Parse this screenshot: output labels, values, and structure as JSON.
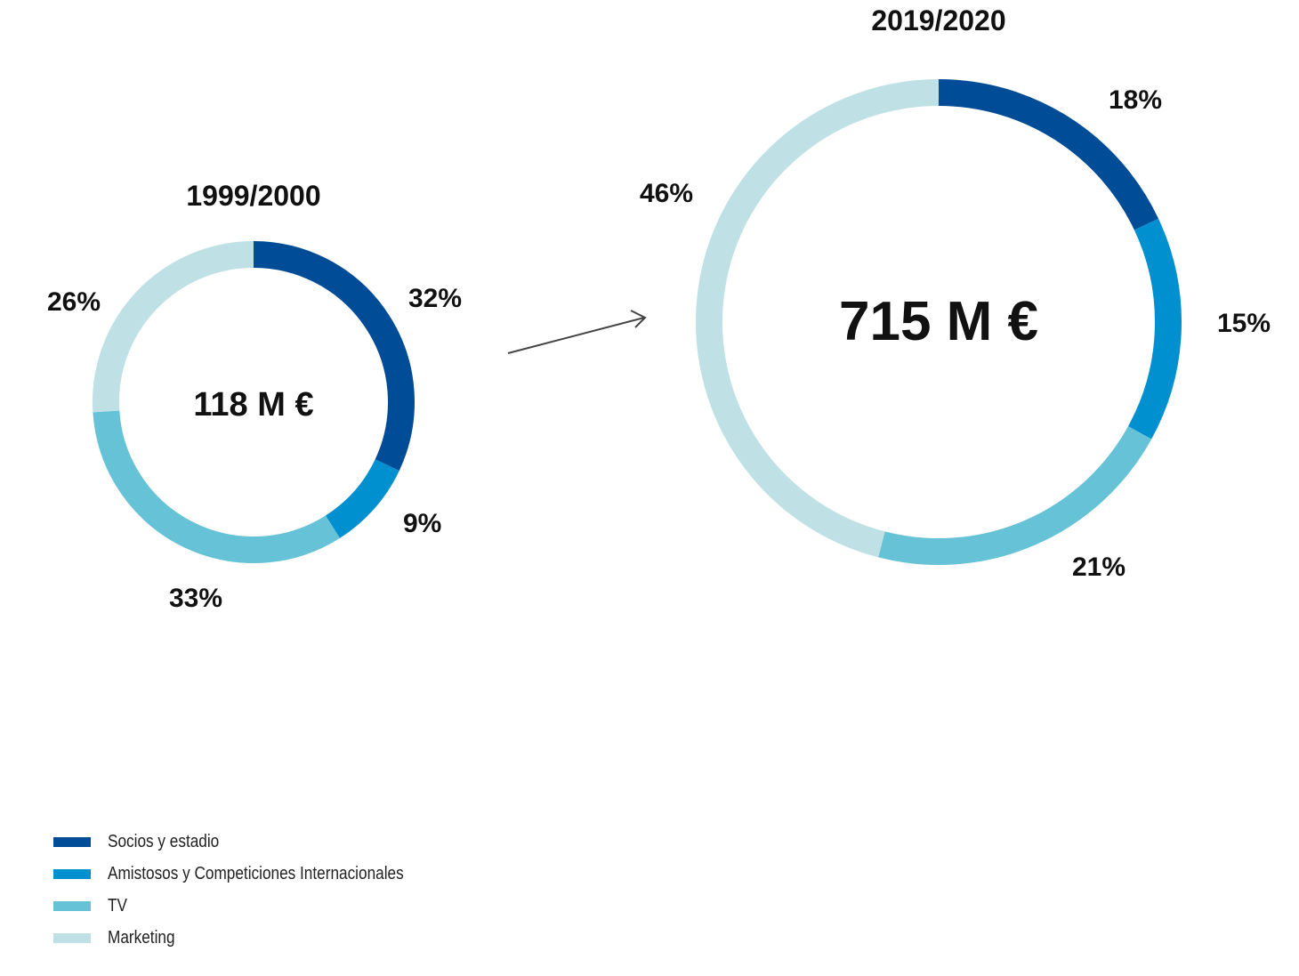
{
  "chart_data": {
    "type": "pie",
    "series": [
      {
        "name": "Socios y estadio",
        "color": "#004c97"
      },
      {
        "name": "Amistosos y Competiciones Internacionales",
        "color": "#0090d0"
      },
      {
        "name": "TV",
        "color": "#66c2d6"
      },
      {
        "name": "Marketing",
        "color": "#bfe1e6"
      }
    ],
    "charts": [
      {
        "period": "1999/2000",
        "total_label": "118 M €",
        "values": [
          32,
          9,
          33,
          26
        ],
        "labels": [
          "32%",
          "9%",
          "33%",
          "26%"
        ]
      },
      {
        "period": "2019/2020",
        "total_label": "715 M €",
        "values": [
          18,
          15,
          21,
          46
        ],
        "labels": [
          "18%",
          "15%",
          "21%",
          "46%"
        ]
      }
    ],
    "legend_position": "bottom-left"
  }
}
